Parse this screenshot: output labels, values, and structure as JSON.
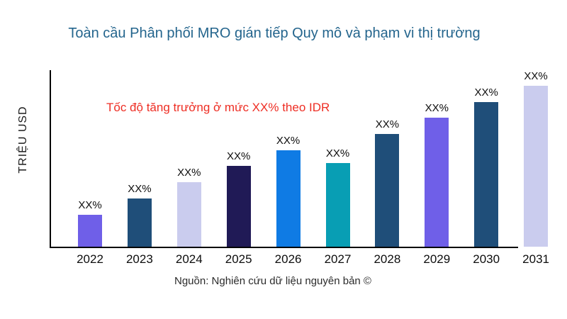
{
  "page": {
    "source": "Nguồn: Nghiên cứu dữ liệu nguyên bản ©"
  },
  "colors": {
    "title": "#24658D",
    "annotation_red": "#EE2E24",
    "axis": "#000000",
    "text": "#0d0d0d",
    "purple": "#6F5FE8",
    "dark_blue": "#1F4E79",
    "lavender": "#CACCEE",
    "dark_indigo": "#201A56",
    "bright_blue": "#0F7BE4",
    "teal": "#089EB4"
  },
  "chart_data": {
    "type": "bar",
    "title": "Toàn cầu Phân phối MRO gián tiếp Quy mô và phạm vi thị trường",
    "xlabel": "",
    "ylabel": "TRIỆU USD",
    "annotation": "Tốc độ tăng trưởng ở mức XX% theo IDR",
    "grid": false,
    "legend": false,
    "categories": [
      "2022",
      "2023",
      "2024",
      "2025",
      "2026",
      "2027",
      "2028",
      "2029",
      "2030",
      "2031"
    ],
    "values": [
      "XX%",
      "XX%",
      "XX%",
      "XX%",
      "XX%",
      "XX%",
      "XX%",
      "XX%",
      "XX%",
      "XX%"
    ],
    "relative_heights_pct": [
      20,
      30,
      40,
      50,
      60,
      52,
      70,
      80,
      90,
      100
    ],
    "bar_colors": [
      "#6F5FE8",
      "#1F4E79",
      "#CACCEE",
      "#201A56",
      "#0F7BE4",
      "#089EB4",
      "#1F4E79",
      "#6F5FE8",
      "#1F4E79",
      "#CACCEE"
    ],
    "ylim_note": "no numeric axis ticks shown; values displayed as XX% placeholders"
  }
}
